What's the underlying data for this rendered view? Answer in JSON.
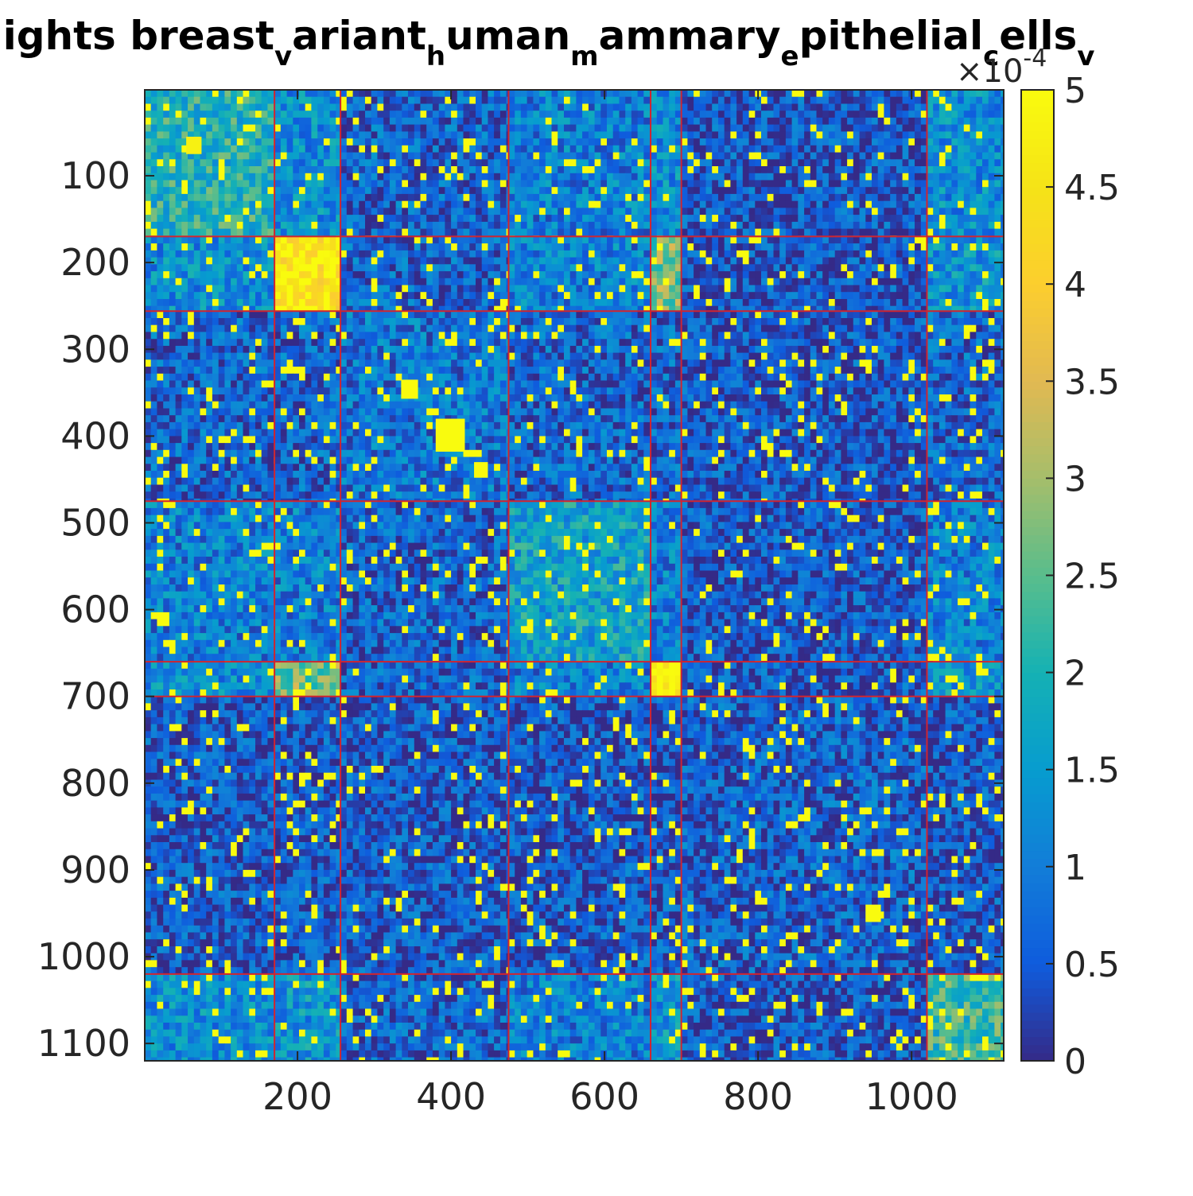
{
  "chart_data": {
    "type": "heatmap",
    "title": {
      "segments": [
        {
          "text": "ights breast",
          "sub": false
        },
        {
          "text": "v",
          "sub": true
        },
        {
          "text": "ariant",
          "sub": false
        },
        {
          "text": "h",
          "sub": true
        },
        {
          "text": "uman",
          "sub": false
        },
        {
          "text": "m",
          "sub": true
        },
        {
          "text": "ammary",
          "sub": false
        },
        {
          "text": "e",
          "sub": true
        },
        {
          "text": "pithelial",
          "sub": false
        },
        {
          "text": "c",
          "sub": true
        },
        {
          "text": "ells",
          "sub": false
        },
        {
          "text": "v",
          "sub": true
        }
      ]
    },
    "xlabel": "",
    "ylabel": "",
    "matrix_size": 1120,
    "xlim": [
      1,
      1120
    ],
    "ylim": [
      1,
      1120
    ],
    "y_reversed": true,
    "x_ticks": [
      200,
      400,
      600,
      800,
      1000
    ],
    "y_ticks": [
      100,
      200,
      300,
      400,
      500,
      600,
      700,
      800,
      900,
      1000,
      1100
    ],
    "colorbar": {
      "min": 0,
      "max": 5,
      "multiplier": {
        "base": "×10",
        "exponent": "-4"
      },
      "ticks": [
        "0",
        "0.5",
        "1",
        "1.5",
        "2",
        "2.5",
        "3",
        "3.5",
        "4",
        "4.5",
        "5"
      ],
      "colormap": "parula"
    },
    "cluster_boundaries": [
      170,
      256,
      475,
      660,
      700,
      1020
    ],
    "cluster_blocks": [
      {
        "start": 1,
        "end": 170,
        "level": 2.0
      },
      {
        "start": 170,
        "end": 256,
        "level": 4.6
      },
      {
        "start": 256,
        "end": 475,
        "level": 0.9
      },
      {
        "start": 475,
        "end": 660,
        "level": 1.6
      },
      {
        "start": 660,
        "end": 700,
        "level": 5.0
      },
      {
        "start": 700,
        "end": 1020,
        "level": 0.6
      },
      {
        "start": 1020,
        "end": 1120,
        "level": 2.2
      }
    ],
    "bright_subblocks": [
      {
        "start": 335,
        "end": 357,
        "level": 5.0
      },
      {
        "start": 380,
        "end": 418,
        "level": 5.0
      },
      {
        "start": 430,
        "end": 448,
        "level": 5.0
      },
      {
        "start": 940,
        "end": 960,
        "level": 5.0
      },
      {
        "start": 55,
        "end": 75,
        "level": 4.8
      }
    ],
    "line_color": "#d1242f"
  }
}
